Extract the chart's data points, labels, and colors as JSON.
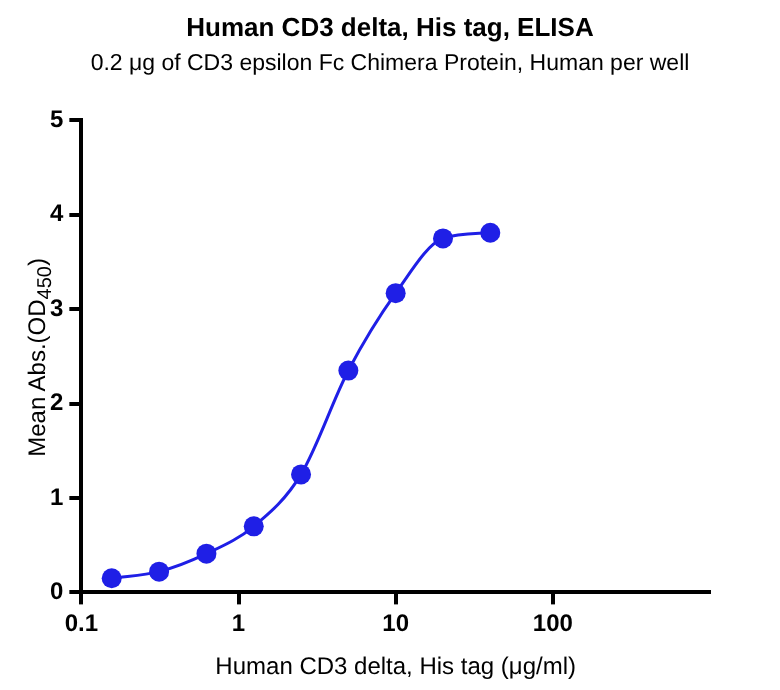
{
  "chart_data": {
    "type": "line",
    "title": "Human CD3 delta, His tag, ELISA",
    "subtitle": "0.2 μg of CD3 epsilon Fc Chimera Protein, Human per well",
    "xlabel": "Human CD3 delta, His tag (μg/ml)",
    "ylabel": "Mean Abs.(OD$_{450}$)",
    "x": [
      0.156,
      0.3125,
      0.625,
      1.25,
      2.5,
      5,
      10,
      20,
      40
    ],
    "series": [
      {
        "color": "#1f1fe6",
        "values": [
          0.15,
          0.22,
          0.41,
          0.7,
          1.25,
          2.35,
          3.17,
          3.75,
          3.81
        ]
      }
    ],
    "log": "x",
    "xlim": [
      0.1,
      1000
    ],
    "xticks": [
      0.1,
      1,
      10,
      100
    ],
    "ylim": [
      0,
      5
    ],
    "yticks": [
      0,
      1,
      2,
      3,
      4,
      5
    ],
    "grid": false,
    "legend": false,
    "marker": "circle",
    "line_style": "solid"
  }
}
